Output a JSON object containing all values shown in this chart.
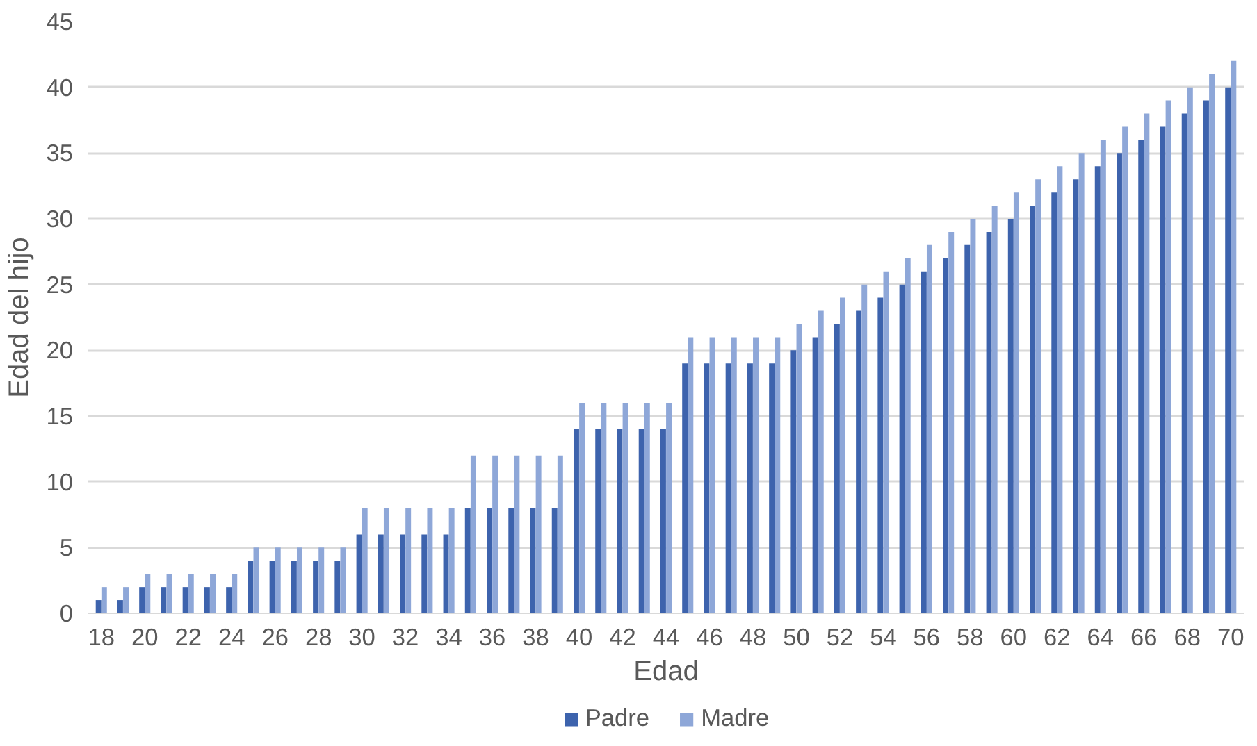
{
  "chart_data": {
    "type": "bar",
    "xlabel": "Edad",
    "ylabel": "Edad del hijo",
    "categories": [
      "18",
      null,
      "20",
      null,
      "22",
      null,
      "24",
      null,
      "26",
      null,
      "28",
      null,
      "30",
      null,
      "32",
      null,
      "34",
      null,
      "36",
      null,
      "38",
      null,
      "40",
      null,
      "42",
      null,
      "44",
      null,
      "46",
      null,
      "48",
      null,
      "50",
      null,
      "52",
      null,
      "54",
      null,
      "56",
      null,
      "58",
      null,
      "60",
      null,
      "62",
      null,
      "64",
      null,
      "66",
      null,
      "68",
      null,
      "70"
    ],
    "series": [
      {
        "name": "Padre",
        "color": "#3d63ad",
        "values": [
          1,
          1,
          2,
          2,
          2,
          2,
          2,
          4,
          4,
          4,
          4,
          4,
          6,
          6,
          6,
          6,
          6,
          8,
          8,
          8,
          8,
          8,
          14,
          14,
          14,
          14,
          14,
          19,
          19,
          19,
          19,
          19,
          20,
          21,
          22,
          23,
          24,
          25,
          26,
          27,
          28,
          29,
          30,
          31,
          32,
          33,
          34,
          35,
          36,
          37,
          38,
          39,
          40
        ]
      },
      {
        "name": "Madre",
        "color": "#8ea7d8",
        "values": [
          2,
          2,
          3,
          3,
          3,
          3,
          3,
          5,
          5,
          5,
          5,
          5,
          8,
          8,
          8,
          8,
          8,
          12,
          12,
          12,
          12,
          12,
          16,
          16,
          16,
          16,
          16,
          21,
          21,
          21,
          21,
          21,
          22,
          23,
          24,
          25,
          26,
          27,
          28,
          29,
          30,
          31,
          32,
          33,
          34,
          35,
          36,
          37,
          38,
          39,
          40,
          41,
          42
        ]
      }
    ],
    "ylim": [
      0,
      45
    ],
    "yticks": [
      0,
      5,
      10,
      15,
      20,
      25,
      30,
      35,
      40,
      45
    ],
    "grid": "y",
    "legend": "bottom"
  }
}
